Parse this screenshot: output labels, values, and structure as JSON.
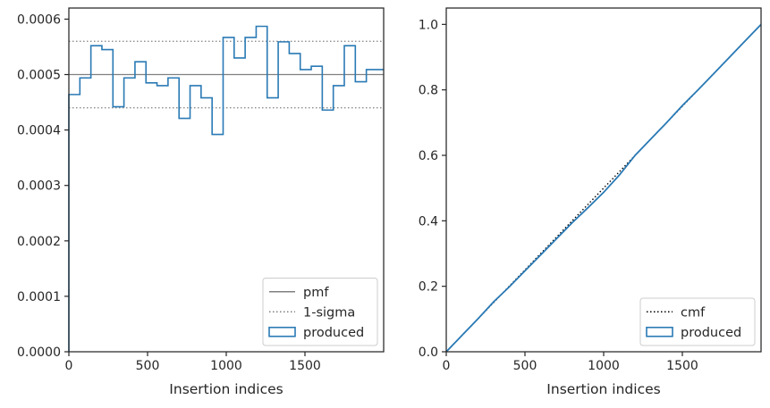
{
  "chart_data": [
    {
      "type": "line",
      "xlabel": "Insertion indices",
      "ylabel": "",
      "xlim": [
        0,
        2000
      ],
      "ylim": [
        0,
        0.00062
      ],
      "xticks": [
        0,
        500,
        1000,
        1500
      ],
      "xtick_labels": [
        "0",
        "500",
        "1000",
        "1500"
      ],
      "yticks": [
        0,
        0.0001,
        0.0002,
        0.0003,
        0.0004,
        0.0005,
        0.0006
      ],
      "ytick_labels": [
        "0.0000",
        "0.0001",
        "0.0002",
        "0.0003",
        "0.0004",
        "0.0005",
        "0.0006"
      ],
      "grid": false,
      "legend_position": "bottom-right",
      "colors": {
        "pmf": "#808080",
        "sigma": "#808080",
        "produced": "#2a7ab5"
      },
      "series": [
        {
          "name": "pmf",
          "style": "solid",
          "value": 0.0005
        },
        {
          "name": "1-sigma",
          "style": "dotted",
          "values": [
            0.00044,
            0.00056
          ]
        },
        {
          "name": "produced",
          "style": "step",
          "bin_width": 70,
          "values": [
            0.000464,
            0.000494,
            0.000552,
            0.000545,
            0.000442,
            0.000494,
            0.000523,
            0.000485,
            0.00048,
            0.000494,
            0.000421,
            0.00048,
            0.000458,
            0.000392,
            0.000567,
            0.00053,
            0.000567,
            0.000587,
            0.000458,
            0.000559,
            0.000538,
            0.000509,
            0.000515,
            0.000436,
            0.00048,
            0.000552,
            0.000487,
            0.000509,
            0.000509
          ]
        }
      ],
      "legend": [
        "pmf",
        "1-sigma",
        "produced"
      ]
    },
    {
      "type": "line",
      "xlabel": "Insertion indices",
      "ylabel": "",
      "xlim": [
        0,
        2000
      ],
      "ylim": [
        0,
        1.05
      ],
      "xticks": [
        0,
        500,
        1000,
        1500
      ],
      "xtick_labels": [
        "0",
        "500",
        "1000",
        "1500"
      ],
      "yticks": [
        0,
        0.2,
        0.4,
        0.6,
        0.8,
        1.0
      ],
      "ytick_labels": [
        "0.0",
        "0.2",
        "0.4",
        "0.6",
        "0.8",
        "1.0"
      ],
      "grid": false,
      "legend_position": "bottom-right",
      "colors": {
        "cmf": "#000000",
        "produced": "#2a7ab5"
      },
      "series": [
        {
          "name": "cmf",
          "style": "dotted",
          "x": [
            0,
            2000
          ],
          "y": [
            0,
            1.0
          ]
        },
        {
          "name": "produced",
          "style": "step",
          "x": [
            0,
            100,
            200,
            300,
            400,
            500,
            600,
            700,
            800,
            900,
            1000,
            1100,
            1200,
            1300,
            1400,
            1500,
            1600,
            1700,
            1800,
            1900,
            2000
          ],
          "y": [
            0,
            0.05,
            0.1,
            0.152,
            0.198,
            0.247,
            0.296,
            0.345,
            0.394,
            0.44,
            0.487,
            0.54,
            0.6,
            0.65,
            0.7,
            0.752,
            0.8,
            0.85,
            0.9,
            0.95,
            1.0
          ]
        }
      ],
      "legend": [
        "cmf",
        "produced"
      ]
    }
  ]
}
